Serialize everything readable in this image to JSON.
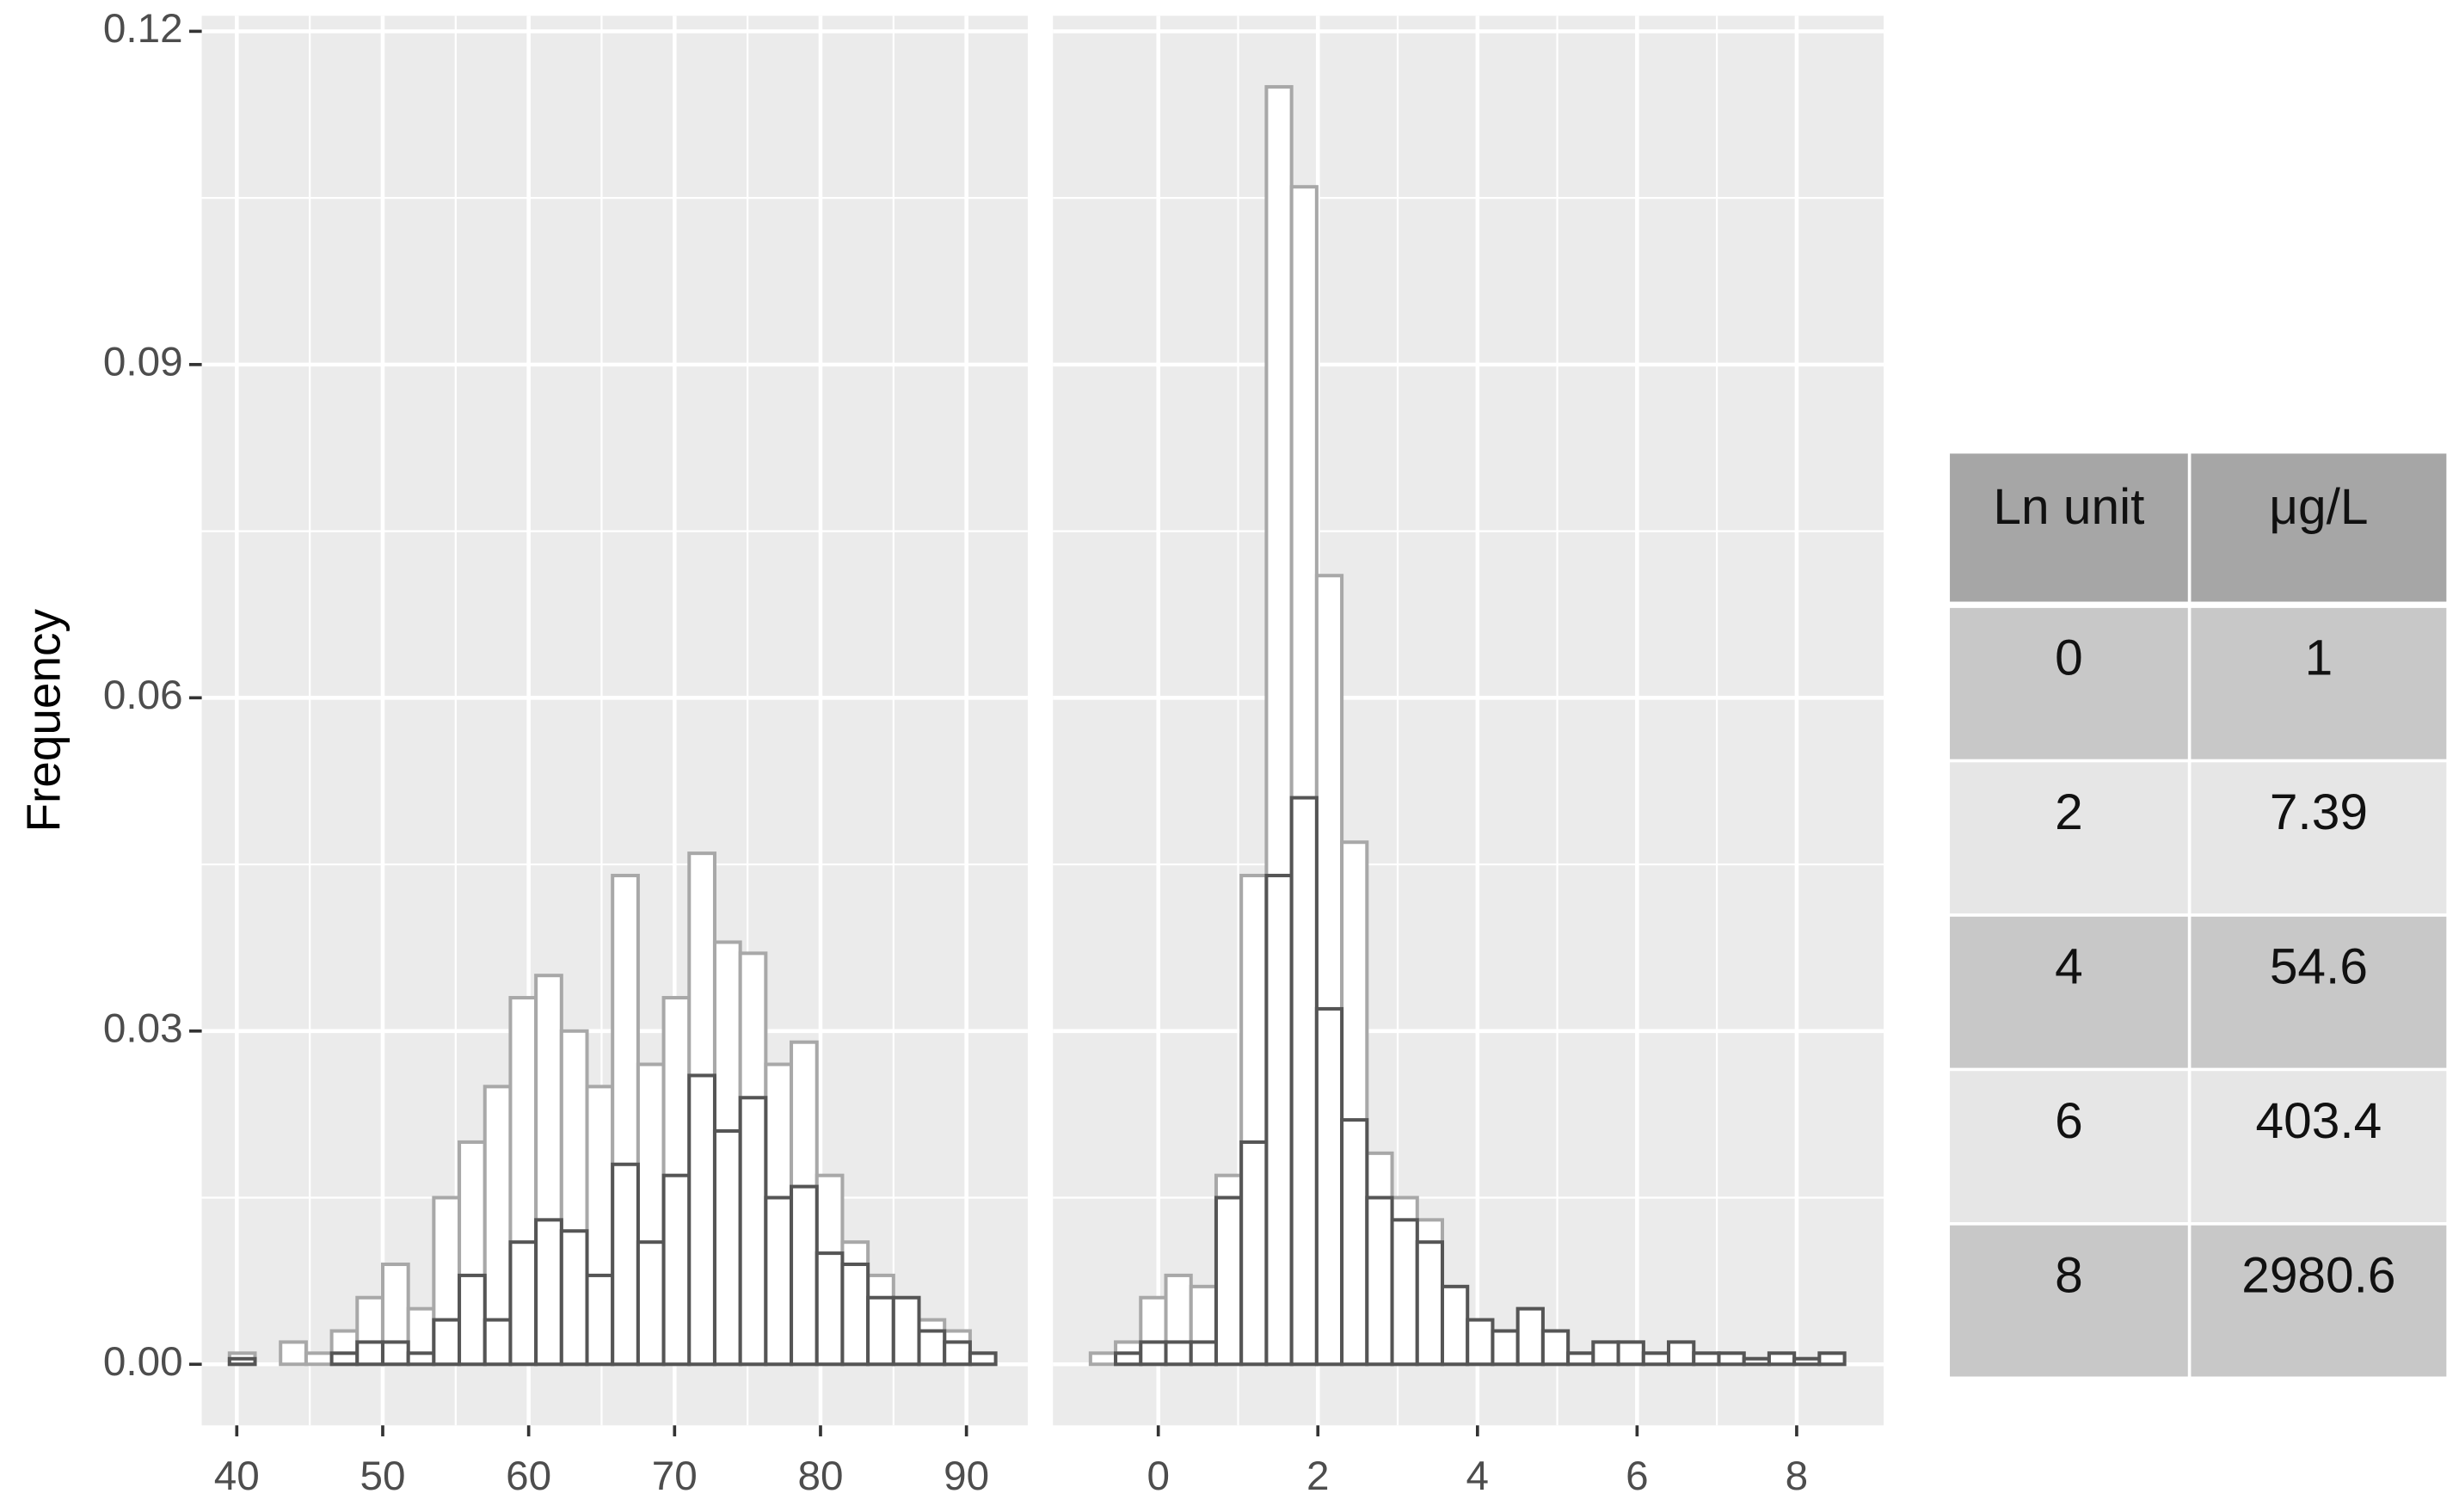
{
  "chart_data": [
    {
      "type": "histogram",
      "y_label": "Frequency",
      "bins": [
        39.5,
        41.25,
        43,
        44.75,
        46.5,
        48.25,
        50,
        51.75,
        53.5,
        55.25,
        57,
        58.75,
        60.5,
        62.25,
        64,
        65.75,
        67.5,
        69.25,
        71,
        72.75,
        74.5,
        76.25,
        78,
        79.75,
        81.5,
        83.25,
        85,
        86.75,
        88.5,
        90.25,
        92
      ],
      "series": [
        {
          "color": "#a8a8a8",
          "values": [
            0.001,
            0,
            0.002,
            0.001,
            0.003,
            0.006,
            0.009,
            0.005,
            0.015,
            0.02,
            0.025,
            0.033,
            0.035,
            0.03,
            0.025,
            0.044,
            0.027,
            0.033,
            0.046,
            0.038,
            0.037,
            0.027,
            0.029,
            0.017,
            0.011,
            0.008,
            0.005,
            0.004,
            0.003,
            0.001
          ]
        },
        {
          "color": "#555555",
          "values": [
            0.0005,
            0,
            0,
            0,
            0.001,
            0.002,
            0.002,
            0.001,
            0.004,
            0.008,
            0.004,
            0.011,
            0.013,
            0.012,
            0.008,
            0.018,
            0.011,
            0.017,
            0.026,
            0.021,
            0.024,
            0.015,
            0.016,
            0.01,
            0.009,
            0.006,
            0.006,
            0.003,
            0.002,
            0.001
          ]
        }
      ],
      "xlim": [
        37.6,
        94.2
      ],
      "xticks": [
        40,
        50,
        60,
        70,
        80,
        90
      ],
      "ylim": [
        -0.0055,
        0.1214
      ],
      "yticks": [
        {
          "value": 0,
          "label": "0.00"
        },
        0.03,
        0.06,
        0.09,
        0.12
      ],
      "grid": true,
      "ytick_labels": true
    },
    {
      "type": "histogram",
      "bins": [
        -0.85,
        -0.535,
        -0.22,
        0.095,
        0.41,
        0.725,
        1.04,
        1.355,
        1.67,
        1.985,
        2.3,
        2.615,
        2.93,
        3.245,
        3.56,
        3.875,
        4.19,
        4.505,
        4.82,
        5.135,
        5.45,
        5.765,
        6.08,
        6.395,
        6.71,
        7.025,
        7.34,
        7.655,
        7.97,
        8.285,
        8.6
      ],
      "series": [
        {
          "color": "#a8a8a8",
          "values": [
            0.001,
            0.002,
            0.006,
            0.008,
            0.007,
            0.017,
            0.044,
            0.115,
            0.106,
            0.071,
            0.047,
            0.019,
            0.015,
            0.013,
            0.004,
            0.004,
            0.003,
            0.005,
            0.003,
            0.001,
            0.002,
            0.002,
            0.001,
            0.002,
            0.001,
            0.001,
            0.0005,
            0.001,
            0.0005,
            0.001
          ]
        },
        {
          "color": "#555555",
          "values": [
            0,
            0.001,
            0.002,
            0.002,
            0.002,
            0.015,
            0.02,
            0.044,
            0.051,
            0.032,
            0.022,
            0.015,
            0.013,
            0.011,
            0.007,
            0.004,
            0.003,
            0.005,
            0.003,
            0.001,
            0.002,
            0.002,
            0.001,
            0.002,
            0.001,
            0.001,
            0.0005,
            0.001,
            0.0005,
            0.001
          ]
        }
      ],
      "xlim": [
        -1.32,
        9.09
      ],
      "xticks": [
        0,
        2,
        4,
        6,
        8
      ],
      "ylim": [
        -0.0055,
        0.1214
      ],
      "yticks": [
        0,
        0.03,
        0.06,
        0.09,
        0.12
      ],
      "grid": true,
      "ytick_labels": false
    }
  ],
  "table": {
    "header": [
      "Ln unit",
      "μg/L"
    ],
    "rows": [
      [
        0,
        1
      ],
      [
        2,
        7.39
      ],
      [
        4,
        54.6
      ],
      [
        6,
        403.4
      ],
      [
        8,
        2980.6
      ]
    ]
  }
}
